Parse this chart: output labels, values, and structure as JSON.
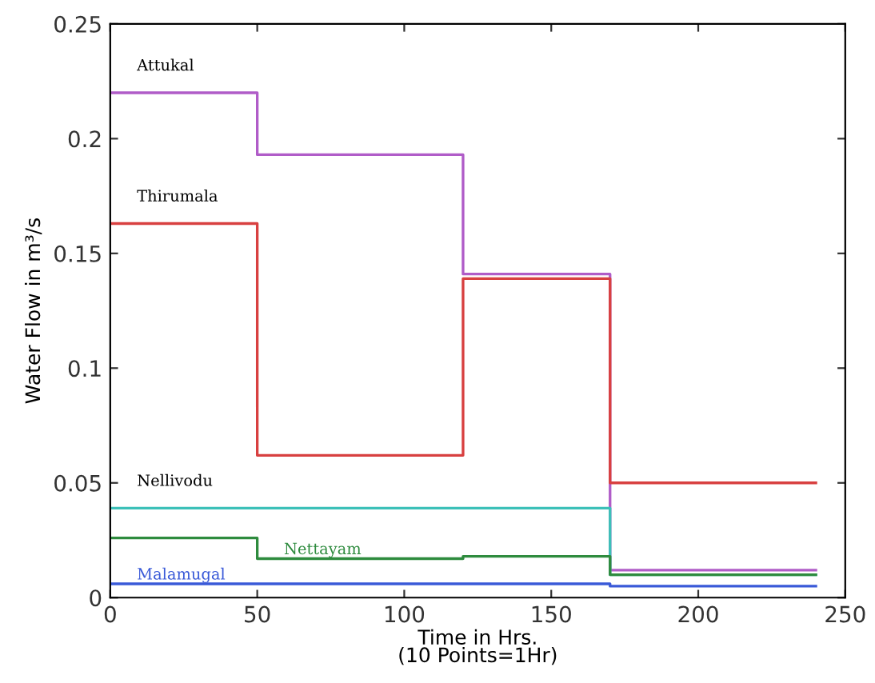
{
  "chart_data": {
    "type": "step",
    "xlabel": "Time in Hrs.\n(10 Points=1Hr)",
    "ylabel": "Water Flow in m³/s",
    "x": [
      0,
      50,
      120,
      170,
      240
    ],
    "series": [
      {
        "name": "Attukal",
        "color": "#b05cc8",
        "values": [
          0.22,
          0.193,
          0.141,
          0.012,
          0.012
        ]
      },
      {
        "name": "Thirumala",
        "color": "#d84040",
        "values": [
          0.163,
          0.062,
          0.139,
          0.05,
          0.05
        ]
      },
      {
        "name": "Nellivodu",
        "color": "#3cc0b8",
        "values": [
          0.039,
          0.039,
          0.039,
          0.01,
          0.01
        ]
      },
      {
        "name": "Nettayam",
        "color": "#2e8b3e",
        "values": [
          0.026,
          0.017,
          0.018,
          0.01,
          0.01
        ]
      },
      {
        "name": "Malamugal",
        "color": "#3a5ad8",
        "values": [
          0.006,
          0.006,
          0.006,
          0.005,
          0.005
        ]
      }
    ],
    "xlim": [
      0,
      250
    ],
    "ylim": [
      0,
      0.25
    ],
    "xticks": [
      0,
      50,
      100,
      150,
      200,
      250
    ],
    "yticks": [
      0,
      0.05,
      {
        "value": 0.1,
        "label": "0.1"
      },
      0.15,
      {
        "value": 0.2,
        "label": "0.2"
      },
      0.25
    ],
    "grid": false,
    "legend": false
  }
}
